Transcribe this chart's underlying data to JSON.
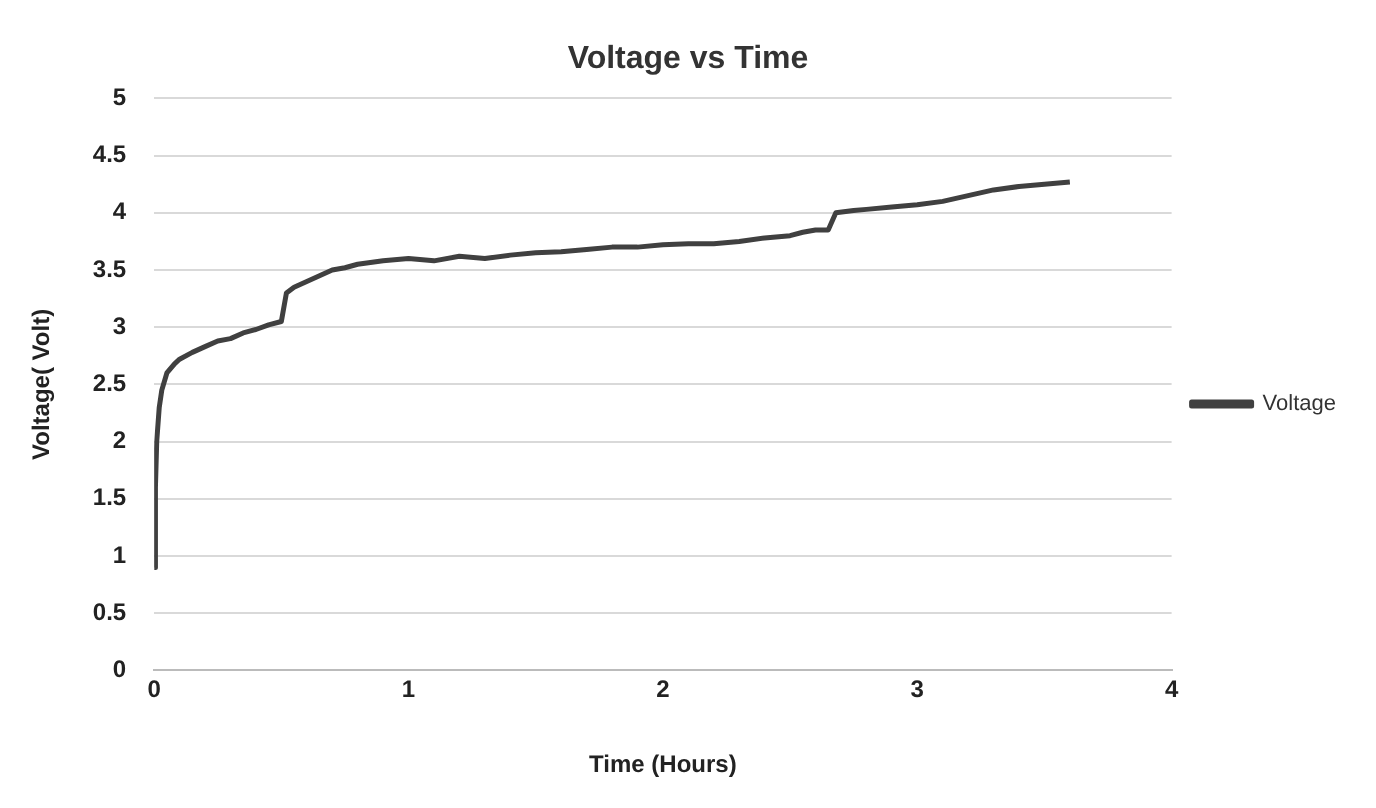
{
  "chart_data": {
    "type": "line",
    "title": "Voltage vs Time",
    "xlabel": "Time (Hours)",
    "ylabel": "Voltage( Volt)",
    "x": [
      0,
      0.005,
      0.01,
      0.02,
      0.03,
      0.05,
      0.08,
      0.1,
      0.15,
      0.2,
      0.25,
      0.3,
      0.35,
      0.4,
      0.45,
      0.5,
      0.52,
      0.55,
      0.6,
      0.65,
      0.7,
      0.75,
      0.8,
      0.9,
      1.0,
      1.1,
      1.2,
      1.3,
      1.4,
      1.5,
      1.6,
      1.7,
      1.8,
      1.9,
      2.0,
      2.1,
      2.2,
      2.3,
      2.4,
      2.5,
      2.55,
      2.6,
      2.65,
      2.66,
      2.68,
      2.75,
      2.8,
      2.9,
      3.0,
      3.1,
      3.2,
      3.3,
      3.4,
      3.5,
      3.6
    ],
    "series": [
      {
        "name": "Voltage",
        "color": "#404040",
        "values": [
          0.9,
          1.6,
          2.0,
          2.3,
          2.45,
          2.6,
          2.68,
          2.72,
          2.78,
          2.83,
          2.88,
          2.9,
          2.95,
          2.98,
          3.02,
          3.05,
          3.3,
          3.35,
          3.4,
          3.45,
          3.5,
          3.52,
          3.55,
          3.58,
          3.6,
          3.58,
          3.62,
          3.6,
          3.63,
          3.65,
          3.66,
          3.68,
          3.7,
          3.7,
          3.72,
          3.73,
          3.73,
          3.75,
          3.78,
          3.8,
          3.83,
          3.85,
          3.85,
          3.9,
          4.0,
          4.02,
          4.03,
          4.05,
          4.07,
          4.1,
          4.15,
          4.2,
          4.23,
          4.25,
          4.27
        ]
      }
    ],
    "xlim": [
      0,
      4
    ],
    "xticks": [
      0,
      1,
      2,
      3,
      4
    ],
    "ylim": [
      0,
      5
    ],
    "yticks": [
      0,
      0.5,
      1,
      1.5,
      2,
      2.5,
      3,
      3.5,
      4,
      4.5,
      5
    ],
    "grid": "y",
    "legend": "right",
    "marker": "none",
    "line_style": "solid"
  }
}
